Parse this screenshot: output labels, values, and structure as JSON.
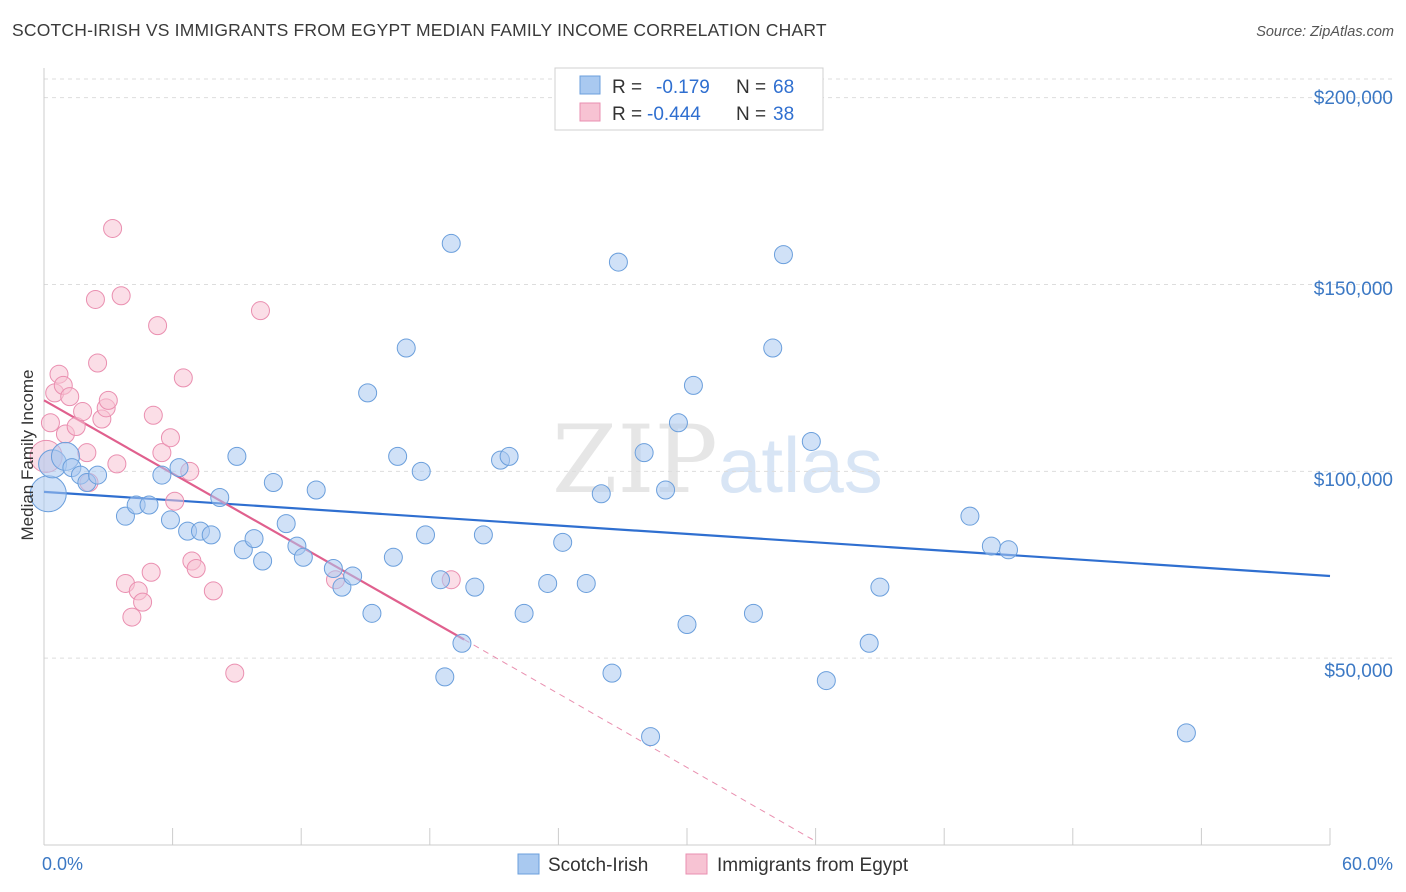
{
  "title": "SCOTCH-IRISH VS IMMIGRANTS FROM EGYPT MEDIAN FAMILY INCOME CORRELATION CHART",
  "source": "Source: ZipAtlas.com",
  "watermark": {
    "zip": "ZIP",
    "atlas": "atlas"
  },
  "colors": {
    "blue_fill": "#a9c9f0",
    "blue_stroke": "#6b9fdc",
    "blue_line": "#2f6fd0",
    "pink_fill": "#f7c3d3",
    "pink_stroke": "#ea8fb0",
    "pink_line": "#e0608e",
    "grid": "#dddddd",
    "axis_text": "#3b78c4"
  },
  "legend": {
    "rows": [
      {
        "r_label": "R =",
        "r_value": "-0.179",
        "n_label": "N =",
        "n_value": "68"
      },
      {
        "r_label": "R =",
        "r_value": "-0.444",
        "n_label": "N =",
        "n_value": "38"
      }
    ]
  },
  "bottom_legend": [
    "Scotch-Irish",
    "Immigrants from Egypt"
  ],
  "chart_data": {
    "type": "scatter",
    "title": "SCOTCH-IRISH VS IMMIGRANTS FROM EGYPT MEDIAN FAMILY INCOME CORRELATION CHART",
    "xlabel": "",
    "ylabel": "Median Family Income",
    "xlim": [
      0,
      60
    ],
    "ylim": [
      0,
      205000
    ],
    "x_tick_labels": [
      "0.0%",
      "60.0%"
    ],
    "y_ticks": [
      50000,
      100000,
      150000,
      200000
    ],
    "y_tick_labels": [
      "$50,000",
      "$100,000",
      "$150,000",
      "$200,000"
    ],
    "grid": true,
    "legend_position": "top-center",
    "series": [
      {
        "name": "Scotch-Irish",
        "r": -0.179,
        "n": 68,
        "trend": {
          "x": [
            0,
            60
          ],
          "y": [
            94500,
            72000
          ]
        },
        "points": [
          [
            0.2,
            94000
          ],
          [
            0.4,
            102000
          ],
          [
            1.0,
            104000
          ],
          [
            1.3,
            101000
          ],
          [
            1.7,
            99000
          ],
          [
            2.0,
            97000
          ],
          [
            2.5,
            99000
          ],
          [
            3.8,
            88000
          ],
          [
            4.3,
            91000
          ],
          [
            4.9,
            91000
          ],
          [
            5.5,
            99000
          ],
          [
            5.9,
            87000
          ],
          [
            6.3,
            101000
          ],
          [
            6.7,
            84000
          ],
          [
            7.3,
            84000
          ],
          [
            7.8,
            83000
          ],
          [
            8.2,
            93000
          ],
          [
            9.0,
            104000
          ],
          [
            9.3,
            79000
          ],
          [
            9.8,
            82000
          ],
          [
            10.2,
            76000
          ],
          [
            10.7,
            97000
          ],
          [
            11.3,
            86000
          ],
          [
            11.8,
            80000
          ],
          [
            12.1,
            77000
          ],
          [
            12.7,
            95000
          ],
          [
            13.5,
            74000
          ],
          [
            13.9,
            69000
          ],
          [
            14.4,
            72000
          ],
          [
            15.1,
            121000
          ],
          [
            15.3,
            62000
          ],
          [
            16.3,
            77000
          ],
          [
            16.5,
            104000
          ],
          [
            16.9,
            133000
          ],
          [
            17.6,
            100000
          ],
          [
            17.8,
            83000
          ],
          [
            18.5,
            71000
          ],
          [
            18.7,
            45000
          ],
          [
            19.0,
            161000
          ],
          [
            19.5,
            54000
          ],
          [
            20.1,
            69000
          ],
          [
            20.5,
            83000
          ],
          [
            21.3,
            103000
          ],
          [
            21.7,
            104000
          ],
          [
            22.4,
            62000
          ],
          [
            23.5,
            70000
          ],
          [
            24.2,
            81000
          ],
          [
            25.3,
            70000
          ],
          [
            26.0,
            94000
          ],
          [
            26.5,
            46000
          ],
          [
            26.8,
            156000
          ],
          [
            28.0,
            105000
          ],
          [
            28.3,
            29000
          ],
          [
            29.0,
            95000
          ],
          [
            29.6,
            113000
          ],
          [
            30.0,
            59000
          ],
          [
            30.3,
            123000
          ],
          [
            33.1,
            62000
          ],
          [
            34.0,
            133000
          ],
          [
            34.5,
            158000
          ],
          [
            35.8,
            108000
          ],
          [
            36.5,
            44000
          ],
          [
            38.5,
            54000
          ],
          [
            39.0,
            69000
          ],
          [
            43.2,
            88000
          ],
          [
            44.2,
            80000
          ],
          [
            45.0,
            79000
          ],
          [
            53.3,
            30000
          ]
        ]
      },
      {
        "name": "Immigrants from Egypt",
        "r": -0.444,
        "n": 38,
        "trend": {
          "x": [
            0,
            19.6
          ],
          "y": [
            119000,
            55000
          ]
        },
        "trend_dashed": {
          "x": [
            19.6,
            36
          ],
          "y": [
            55000,
            1000
          ]
        },
        "points": [
          [
            0.1,
            104000
          ],
          [
            0.3,
            113000
          ],
          [
            0.5,
            121000
          ],
          [
            0.7,
            126000
          ],
          [
            0.9,
            123000
          ],
          [
            1.0,
            110000
          ],
          [
            1.2,
            120000
          ],
          [
            1.5,
            112000
          ],
          [
            1.8,
            116000
          ],
          [
            2.0,
            105000
          ],
          [
            2.1,
            97000
          ],
          [
            2.4,
            146000
          ],
          [
            2.5,
            129000
          ],
          [
            2.7,
            114000
          ],
          [
            2.9,
            117000
          ],
          [
            3.0,
            119000
          ],
          [
            3.4,
            102000
          ],
          [
            3.2,
            165000
          ],
          [
            3.6,
            147000
          ],
          [
            3.8,
            70000
          ],
          [
            4.1,
            61000
          ],
          [
            4.4,
            68000
          ],
          [
            4.6,
            65000
          ],
          [
            5.0,
            73000
          ],
          [
            5.1,
            115000
          ],
          [
            5.3,
            139000
          ],
          [
            5.5,
            105000
          ],
          [
            5.9,
            109000
          ],
          [
            6.1,
            92000
          ],
          [
            6.5,
            125000
          ],
          [
            6.8,
            100000
          ],
          [
            6.9,
            76000
          ],
          [
            7.1,
            74000
          ],
          [
            7.9,
            68000
          ],
          [
            8.9,
            46000
          ],
          [
            10.1,
            143000
          ],
          [
            13.6,
            71000
          ],
          [
            19.0,
            71000
          ]
        ]
      }
    ]
  }
}
